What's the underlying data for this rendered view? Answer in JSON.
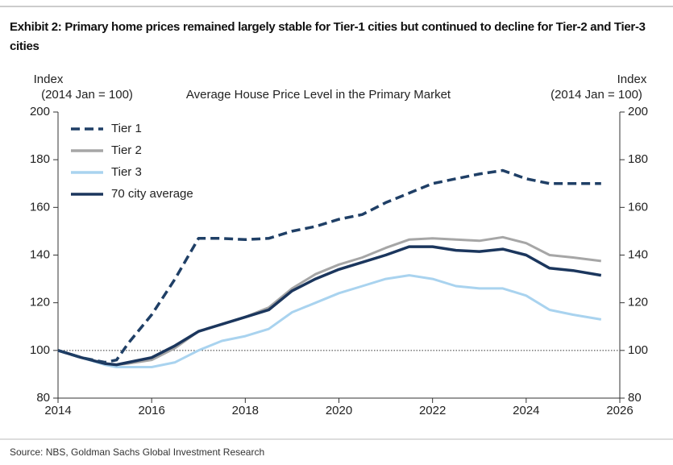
{
  "title": "Exhibit 2: Primary home prices remained largely stable for Tier-1 cities but continued to decline for Tier-2 and Tier-3 cities",
  "source": "Source: NBS, Goldman Sachs Global Investment Research",
  "chart_data": {
    "type": "line",
    "title": "Average House Price Level in the Primary Market",
    "y_label": [
      "Index",
      "(2014 Jan = 100)"
    ],
    "y2_label": [
      "Index",
      "(2014 Jan = 100)"
    ],
    "x": [
      2014,
      2014.5,
      2015,
      2015.25,
      2015.5,
      2016,
      2016.5,
      2017,
      2017.5,
      2018,
      2018.5,
      2019,
      2019.5,
      2020,
      2020.5,
      2021,
      2021.5,
      2022,
      2022.5,
      2023,
      2023.5,
      2024,
      2024.5,
      2025,
      2025.6
    ],
    "series": [
      {
        "name": "Tier 1",
        "color": "#1f3f66",
        "style": "dashed",
        "values": [
          100,
          97,
          95,
          96,
          103,
          115,
          130,
          147,
          147,
          146.5,
          147,
          150,
          152,
          155,
          157,
          162,
          166,
          170,
          172,
          174,
          175.5,
          172,
          170,
          170,
          170
        ]
      },
      {
        "name": "Tier 2",
        "color": "#a6a6a6",
        "style": "solid",
        "values": [
          100,
          97,
          94.5,
          94,
          94.5,
          96,
          101,
          108,
          111,
          114,
          118,
          126,
          132,
          136,
          139,
          143,
          146.5,
          147,
          146.5,
          146,
          147.5,
          145,
          140,
          139,
          137.5
        ]
      },
      {
        "name": "Tier 3",
        "color": "#a9d3ef",
        "style": "solid",
        "values": [
          100,
          97,
          94,
          93,
          93,
          93,
          95,
          100,
          104,
          106,
          109,
          116,
          120,
          124,
          127,
          130,
          131.5,
          130,
          127,
          126,
          126,
          123,
          117,
          115,
          113
        ]
      },
      {
        "name": "70 city average",
        "color": "#1b365d",
        "style": "solid",
        "values": [
          100,
          97,
          94.5,
          94,
          95,
          97,
          102,
          108,
          111,
          114,
          117,
          125,
          130,
          134,
          137,
          140,
          143.5,
          143.5,
          142,
          141.5,
          142.5,
          140,
          134.5,
          133.5,
          131.5
        ]
      }
    ],
    "xlim": [
      2014,
      2026
    ],
    "xticks": [
      2014,
      2016,
      2018,
      2020,
      2022,
      2024,
      2026
    ],
    "ylim": [
      80,
      200
    ],
    "yticks": [
      80,
      100,
      120,
      140,
      160,
      180,
      200
    ],
    "y2lim": [
      80,
      200
    ],
    "y2ticks": [
      80,
      100,
      120,
      140,
      160,
      180,
      200
    ],
    "reference_line": 100,
    "grid": false,
    "legend": "upper left"
  }
}
